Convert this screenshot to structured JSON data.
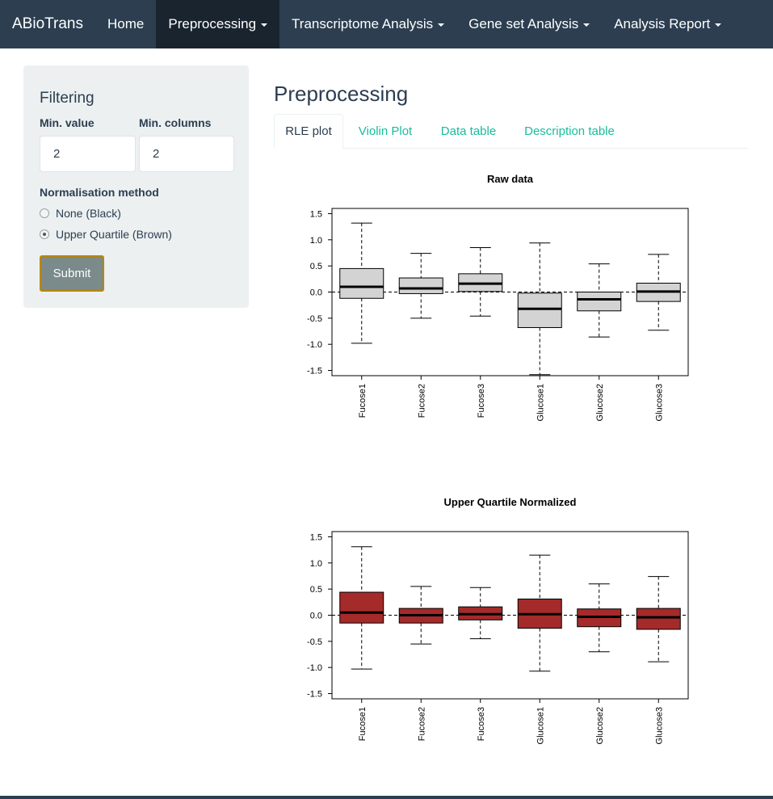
{
  "navbar": {
    "brand": "ABioTrans",
    "items": [
      {
        "label": "Home"
      },
      {
        "label": "Preprocessing"
      },
      {
        "label": "Transcriptome Analysis"
      },
      {
        "label": "Gene set Analysis"
      },
      {
        "label": "Analysis Report"
      }
    ]
  },
  "sidebar": {
    "title": "Filtering",
    "min_value_label": "Min. value",
    "min_value": "2",
    "min_columns_label": "Min. columns",
    "min_columns": "2",
    "norm_label": "Normalisation method",
    "options": [
      {
        "label": "None (Black)",
        "checked": false
      },
      {
        "label": "Upper Quartile (Brown)",
        "checked": true
      }
    ],
    "submit_label": "Submit"
  },
  "main": {
    "title": "Preprocessing",
    "tabs": [
      {
        "label": "RLE plot"
      },
      {
        "label": "Violin Plot"
      },
      {
        "label": "Data table"
      },
      {
        "label": "Description table"
      }
    ]
  },
  "colors": {
    "navbar": "#2c3e50",
    "tab_link": "#18bc9c",
    "raw_box": "#d3d3d3",
    "normalized_box": "#a52a2a"
  },
  "chart_data": [
    {
      "type": "boxplot",
      "title": "Raw data",
      "categories": [
        "Fucose1",
        "Fucose2",
        "Fucose3",
        "Glucose1",
        "Glucose2",
        "Glucose3"
      ],
      "ylim": [
        -1.6,
        1.6
      ],
      "yticks": [
        1.5,
        1.0,
        0.5,
        0.0,
        -0.5,
        -1.0,
        -1.5
      ],
      "ytick_labels": [
        "1.5",
        "1.0",
        "0.5",
        "0.0",
        "-0.5",
        "-1.0",
        "-1.5"
      ],
      "reference_line": 0,
      "box_color": "#d3d3d3",
      "boxes": [
        {
          "min": -0.98,
          "q1": -0.12,
          "median": 0.1,
          "q3": 0.45,
          "max": 1.32
        },
        {
          "min": -0.5,
          "q1": -0.03,
          "median": 0.07,
          "q3": 0.27,
          "max": 0.74
        },
        {
          "min": -0.46,
          "q1": 0.01,
          "median": 0.16,
          "q3": 0.35,
          "max": 0.85
        },
        {
          "min": -1.58,
          "q1": -0.68,
          "median": -0.32,
          "q3": -0.02,
          "max": 0.94
        },
        {
          "min": -0.86,
          "q1": -0.36,
          "median": -0.14,
          "q3": 0.0,
          "max": 0.54
        },
        {
          "min": -0.73,
          "q1": -0.18,
          "median": 0.01,
          "q3": 0.17,
          "max": 0.72
        }
      ]
    },
    {
      "type": "boxplot",
      "title": "Upper Quartile Normalized",
      "categories": [
        "Fucose1",
        "Fucose2",
        "Fucose3",
        "Glucose1",
        "Glucose2",
        "Glucose3"
      ],
      "ylim": [
        -1.6,
        1.6
      ],
      "yticks": [
        1.5,
        1.0,
        0.5,
        0.0,
        -0.5,
        -1.0,
        -1.5
      ],
      "ytick_labels": [
        "1.5",
        "1.0",
        "0.5",
        "0.0",
        "-0.5",
        "-1.0",
        "-1.5"
      ],
      "reference_line": 0,
      "box_color": "#a52a2a",
      "boxes": [
        {
          "min": -1.03,
          "q1": -0.15,
          "median": 0.05,
          "q3": 0.44,
          "max": 1.31
        },
        {
          "min": -0.55,
          "q1": -0.15,
          "median": 0.0,
          "q3": 0.13,
          "max": 0.55
        },
        {
          "min": -0.45,
          "q1": -0.09,
          "median": 0.02,
          "q3": 0.16,
          "max": 0.53
        },
        {
          "min": -1.07,
          "q1": -0.25,
          "median": 0.02,
          "q3": 0.31,
          "max": 1.15
        },
        {
          "min": -0.7,
          "q1": -0.22,
          "median": -0.03,
          "q3": 0.12,
          "max": 0.6
        },
        {
          "min": -0.89,
          "q1": -0.27,
          "median": -0.04,
          "q3": 0.13,
          "max": 0.74
        }
      ]
    }
  ]
}
